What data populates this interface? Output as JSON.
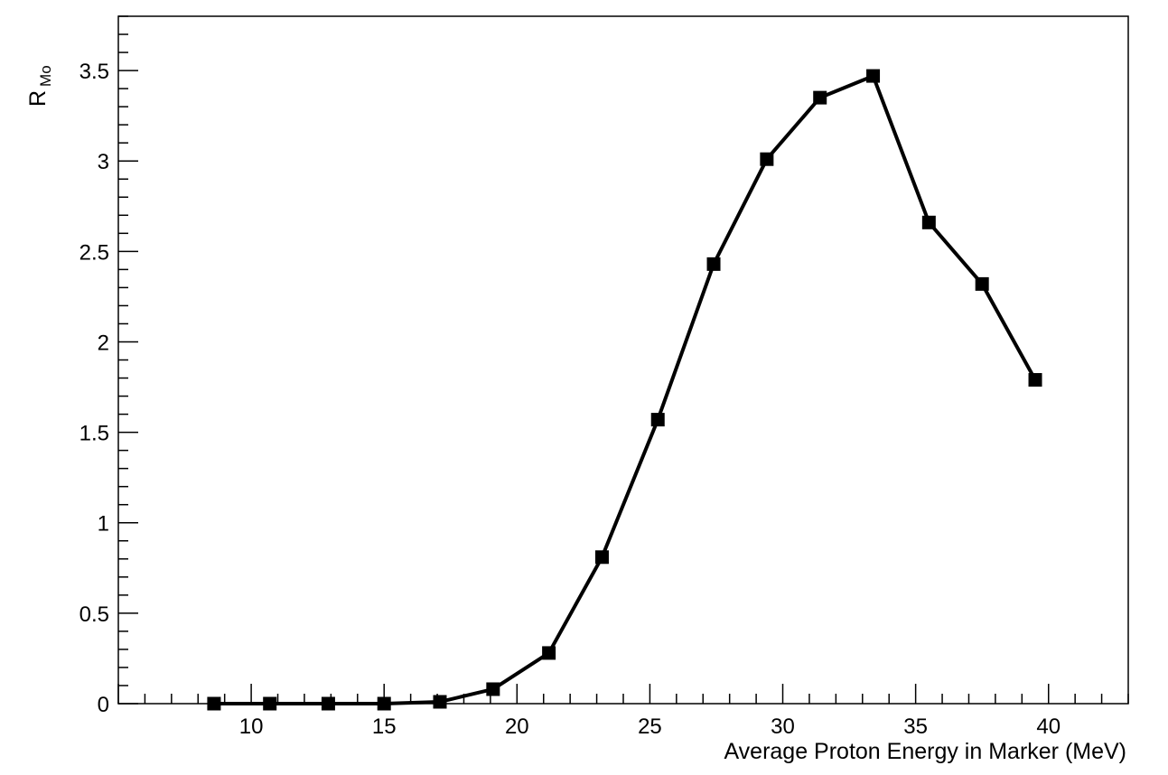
{
  "chart_data": {
    "type": "line",
    "title": "",
    "xlabel": "Average Proton Energy in Marker (MeV)",
    "ylabel": "R",
    "ylabel_subscript": "Mo",
    "xlim": [
      5,
      43
    ],
    "ylim": [
      0,
      3.8
    ],
    "xticks": [
      10,
      15,
      20,
      25,
      30,
      35,
      40
    ],
    "xtick_labels": [
      "10",
      "15",
      "20",
      "25",
      "30",
      "35",
      "40"
    ],
    "yticks": [
      0,
      0.5,
      1,
      1.5,
      2,
      2.5,
      3,
      3.5
    ],
    "ytick_labels": [
      "0",
      "0.5",
      "1",
      "1.5",
      "2",
      "2.5",
      "3",
      "3.5"
    ],
    "grid": false,
    "marker": "square",
    "colors": {
      "line": "#000000",
      "marker": "#000000",
      "frame": "#000000"
    },
    "series": [
      {
        "x": [
          8.6,
          10.7,
          12.9,
          15.0,
          17.1,
          19.1,
          21.2,
          23.2,
          25.3,
          27.4,
          29.4,
          31.4,
          33.4,
          35.5,
          37.5,
          39.5
        ],
        "y": [
          0.0,
          0.0,
          0.0,
          0.0,
          0.01,
          0.08,
          0.28,
          0.81,
          1.57,
          2.43,
          3.01,
          3.35,
          3.47,
          2.66,
          2.32,
          1.79
        ]
      }
    ]
  }
}
